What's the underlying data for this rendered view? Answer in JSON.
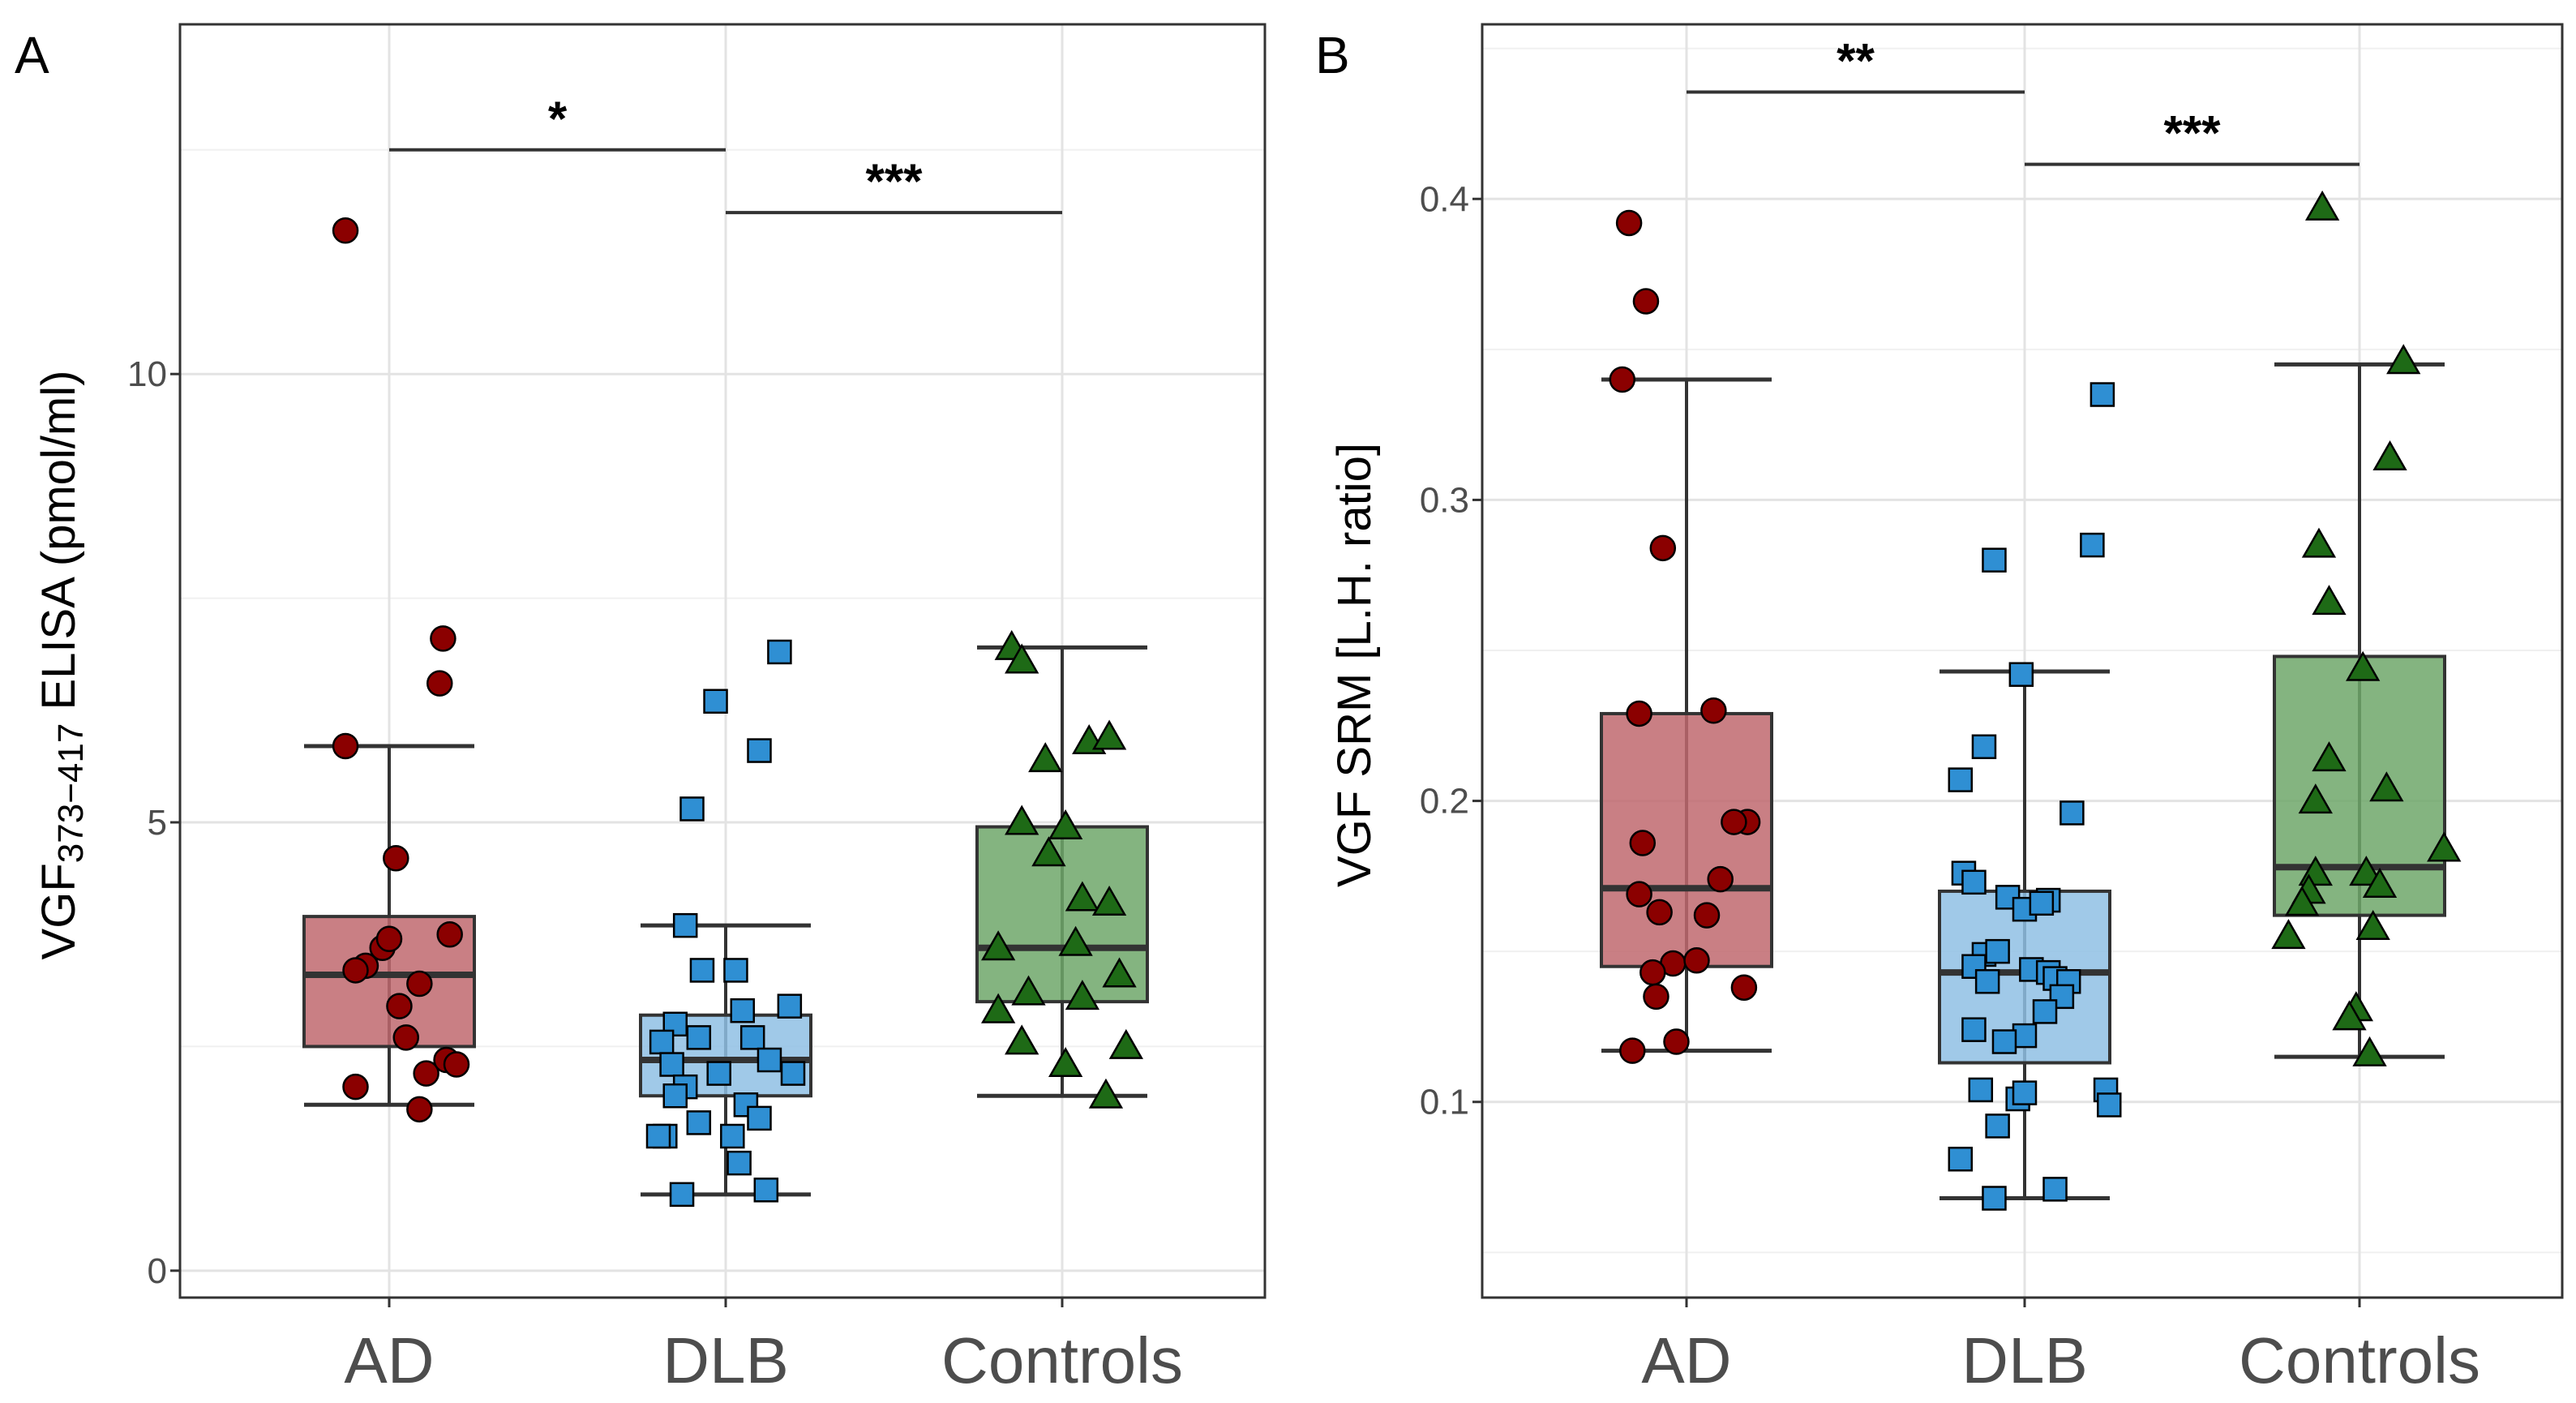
{
  "chart_data": [
    {
      "panel": "A",
      "type": "box",
      "ylabel_main": "VGF",
      "ylabel_sub": "373−417",
      "ylabel_rest": " ELISA (pmol/ml)",
      "categories": [
        "AD",
        "DLB",
        "Controls"
      ],
      "ylim": [
        -0.3,
        13.9
      ],
      "yticks": [
        0,
        5,
        10
      ],
      "ytick_labels": [
        "0",
        "5",
        "10"
      ],
      "colors": {
        "fill": [
          "#c0686e",
          "#8fbfe4",
          "#6ea76a"
        ],
        "point": [
          "#8b0000",
          "#2f8fd3",
          "#1e6a16"
        ]
      },
      "shapes": [
        "circle",
        "square",
        "triangle"
      ],
      "boxes": [
        {
          "category": "AD",
          "whisker_low": 1.85,
          "q1": 2.5,
          "median": 3.3,
          "q3": 3.95,
          "whisker_high": 5.85
        },
        {
          "category": "DLB",
          "whisker_low": 0.85,
          "q1": 1.95,
          "median": 2.35,
          "q3": 2.85,
          "whisker_high": 3.85
        },
        {
          "category": "Controls",
          "whisker_low": 1.95,
          "q1": 3.0,
          "median": 3.6,
          "q3": 4.95,
          "whisker_high": 6.95
        }
      ],
      "points": [
        [
          {
            "x": -0.13,
            "y": 11.6
          },
          {
            "x": 0.16,
            "y": 7.05
          },
          {
            "x": 0.15,
            "y": 6.55
          },
          {
            "x": -0.13,
            "y": 5.85
          },
          {
            "x": 0.02,
            "y": 4.6
          },
          {
            "x": -0.07,
            "y": 3.4
          },
          {
            "x": -0.1,
            "y": 3.35
          },
          {
            "x": -0.02,
            "y": 3.6
          },
          {
            "x": 0.0,
            "y": 3.7
          },
          {
            "x": 0.18,
            "y": 3.75
          },
          {
            "x": 0.09,
            "y": 3.2
          },
          {
            "x": 0.03,
            "y": 2.95
          },
          {
            "x": 0.05,
            "y": 2.6
          },
          {
            "x": -0.1,
            "y": 2.05
          },
          {
            "x": 0.11,
            "y": 2.2
          },
          {
            "x": 0.17,
            "y": 2.35
          },
          {
            "x": 0.2,
            "y": 2.3
          },
          {
            "x": 0.09,
            "y": 1.8
          }
        ],
        [
          {
            "x": 0.16,
            "y": 6.9
          },
          {
            "x": -0.03,
            "y": 6.35
          },
          {
            "x": 0.1,
            "y": 5.8
          },
          {
            "x": -0.1,
            "y": 5.15
          },
          {
            "x": -0.12,
            "y": 3.85
          },
          {
            "x": -0.07,
            "y": 3.35
          },
          {
            "x": 0.03,
            "y": 3.35
          },
          {
            "x": 0.19,
            "y": 2.95
          },
          {
            "x": 0.05,
            "y": 2.9
          },
          {
            "x": -0.15,
            "y": 2.75
          },
          {
            "x": -0.19,
            "y": 2.55
          },
          {
            "x": -0.08,
            "y": 2.6
          },
          {
            "x": 0.08,
            "y": 2.6
          },
          {
            "x": -0.16,
            "y": 2.3
          },
          {
            "x": -0.02,
            "y": 2.2
          },
          {
            "x": 0.13,
            "y": 2.35
          },
          {
            "x": 0.2,
            "y": 2.2
          },
          {
            "x": -0.12,
            "y": 2.05
          },
          {
            "x": -0.15,
            "y": 1.95
          },
          {
            "x": 0.06,
            "y": 1.85
          },
          {
            "x": -0.08,
            "y": 1.65
          },
          {
            "x": 0.1,
            "y": 1.7
          },
          {
            "x": -0.18,
            "y": 1.5
          },
          {
            "x": -0.2,
            "y": 1.5
          },
          {
            "x": 0.02,
            "y": 1.5
          },
          {
            "x": 0.04,
            "y": 1.2
          },
          {
            "x": 0.12,
            "y": 0.9
          },
          {
            "x": -0.13,
            "y": 0.85
          }
        ],
        [
          {
            "x": -0.15,
            "y": 6.95
          },
          {
            "x": -0.12,
            "y": 6.8
          },
          {
            "x": 0.08,
            "y": 5.9
          },
          {
            "x": 0.14,
            "y": 5.95
          },
          {
            "x": -0.05,
            "y": 5.7
          },
          {
            "x": -0.12,
            "y": 5.0
          },
          {
            "x": 0.01,
            "y": 4.95
          },
          {
            "x": -0.04,
            "y": 4.65
          },
          {
            "x": 0.06,
            "y": 4.15
          },
          {
            "x": 0.14,
            "y": 4.1
          },
          {
            "x": -0.19,
            "y": 3.6
          },
          {
            "x": 0.04,
            "y": 3.65
          },
          {
            "x": 0.17,
            "y": 3.3
          },
          {
            "x": -0.1,
            "y": 3.1
          },
          {
            "x": 0.06,
            "y": 3.05
          },
          {
            "x": -0.19,
            "y": 2.9
          },
          {
            "x": -0.12,
            "y": 2.55
          },
          {
            "x": 0.19,
            "y": 2.5
          },
          {
            "x": 0.01,
            "y": 2.3
          },
          {
            "x": 0.13,
            "y": 1.95
          }
        ]
      ],
      "significance": [
        {
          "from": 0,
          "to": 1,
          "y": 12.5,
          "label": "*"
        },
        {
          "from": 1,
          "to": 2,
          "y": 11.8,
          "label": "***"
        }
      ]
    },
    {
      "panel": "B",
      "type": "box",
      "ylabel_main": "VGF SRM [L.H. ratio]",
      "ylabel_sub": "",
      "ylabel_rest": "",
      "categories": [
        "AD",
        "DLB",
        "Controls"
      ],
      "ylim": [
        0.035,
        0.458
      ],
      "yticks": [
        0.1,
        0.2,
        0.3,
        0.4
      ],
      "ytick_labels": [
        "0.1",
        "0.2",
        "0.3",
        "0.4"
      ],
      "colors": {
        "fill": [
          "#c0686e",
          "#8fbfe4",
          "#6ea76a"
        ],
        "point": [
          "#8b0000",
          "#2f8fd3",
          "#1e6a16"
        ]
      },
      "shapes": [
        "circle",
        "square",
        "triangle"
      ],
      "boxes": [
        {
          "category": "AD",
          "whisker_low": 0.117,
          "q1": 0.145,
          "median": 0.171,
          "q3": 0.229,
          "whisker_high": 0.34
        },
        {
          "category": "DLB",
          "whisker_low": 0.068,
          "q1": 0.113,
          "median": 0.143,
          "q3": 0.17,
          "whisker_high": 0.243
        },
        {
          "category": "Controls",
          "whisker_low": 0.115,
          "q1": 0.162,
          "median": 0.178,
          "q3": 0.248,
          "whisker_high": 0.345
        }
      ],
      "points": [
        [
          {
            "x": -0.17,
            "y": 0.392
          },
          {
            "x": -0.12,
            "y": 0.366
          },
          {
            "x": -0.19,
            "y": 0.34
          },
          {
            "x": -0.07,
            "y": 0.284
          },
          {
            "x": -0.14,
            "y": 0.229
          },
          {
            "x": 0.08,
            "y": 0.23
          },
          {
            "x": -0.13,
            "y": 0.186
          },
          {
            "x": 0.18,
            "y": 0.193
          },
          {
            "x": 0.14,
            "y": 0.193
          },
          {
            "x": 0.1,
            "y": 0.174
          },
          {
            "x": -0.14,
            "y": 0.169
          },
          {
            "x": 0.06,
            "y": 0.162
          },
          {
            "x": -0.08,
            "y": 0.163
          },
          {
            "x": -0.04,
            "y": 0.146
          },
          {
            "x": 0.03,
            "y": 0.147
          },
          {
            "x": -0.1,
            "y": 0.143
          },
          {
            "x": -0.09,
            "y": 0.135
          },
          {
            "x": 0.17,
            "y": 0.138
          },
          {
            "x": -0.03,
            "y": 0.12
          },
          {
            "x": -0.16,
            "y": 0.117
          }
        ],
        [
          {
            "x": 0.23,
            "y": 0.335
          },
          {
            "x": 0.2,
            "y": 0.285
          },
          {
            "x": -0.09,
            "y": 0.28
          },
          {
            "x": -0.01,
            "y": 0.242
          },
          {
            "x": -0.12,
            "y": 0.218
          },
          {
            "x": -0.19,
            "y": 0.207
          },
          {
            "x": 0.14,
            "y": 0.196
          },
          {
            "x": -0.18,
            "y": 0.176
          },
          {
            "x": -0.15,
            "y": 0.173
          },
          {
            "x": -0.05,
            "y": 0.168
          },
          {
            "x": 0.07,
            "y": 0.167
          },
          {
            "x": 0.0,
            "y": 0.164
          },
          {
            "x": 0.05,
            "y": 0.166
          },
          {
            "x": -0.12,
            "y": 0.149
          },
          {
            "x": -0.08,
            "y": 0.15
          },
          {
            "x": -0.15,
            "y": 0.145
          },
          {
            "x": 0.02,
            "y": 0.144
          },
          {
            "x": 0.07,
            "y": 0.143
          },
          {
            "x": 0.09,
            "y": 0.141
          },
          {
            "x": 0.13,
            "y": 0.14
          },
          {
            "x": 0.11,
            "y": 0.135
          },
          {
            "x": -0.11,
            "y": 0.14
          },
          {
            "x": 0.06,
            "y": 0.13
          },
          {
            "x": -0.15,
            "y": 0.124
          },
          {
            "x": 0.0,
            "y": 0.122
          },
          {
            "x": -0.06,
            "y": 0.12
          },
          {
            "x": -0.13,
            "y": 0.104
          },
          {
            "x": -0.02,
            "y": 0.101
          },
          {
            "x": 0.0,
            "y": 0.103
          },
          {
            "x": 0.24,
            "y": 0.104
          },
          {
            "x": 0.25,
            "y": 0.099
          },
          {
            "x": -0.08,
            "y": 0.092
          },
          {
            "x": -0.19,
            "y": 0.081
          },
          {
            "x": 0.09,
            "y": 0.071
          },
          {
            "x": -0.09,
            "y": 0.068
          }
        ],
        [
          {
            "x": -0.11,
            "y": 0.397
          },
          {
            "x": 0.13,
            "y": 0.346
          },
          {
            "x": 0.09,
            "y": 0.314
          },
          {
            "x": -0.12,
            "y": 0.285
          },
          {
            "x": -0.09,
            "y": 0.266
          },
          {
            "x": 0.01,
            "y": 0.244
          },
          {
            "x": -0.09,
            "y": 0.214
          },
          {
            "x": 0.08,
            "y": 0.204
          },
          {
            "x": -0.13,
            "y": 0.2
          },
          {
            "x": 0.25,
            "y": 0.184
          },
          {
            "x": 0.02,
            "y": 0.176
          },
          {
            "x": -0.13,
            "y": 0.176
          },
          {
            "x": -0.15,
            "y": 0.17
          },
          {
            "x": 0.06,
            "y": 0.172
          },
          {
            "x": -0.17,
            "y": 0.166
          },
          {
            "x": 0.04,
            "y": 0.158
          },
          {
            "x": -0.21,
            "y": 0.155
          },
          {
            "x": -0.01,
            "y": 0.131
          },
          {
            "x": -0.03,
            "y": 0.128
          },
          {
            "x": 0.03,
            "y": 0.116
          }
        ]
      ],
      "significance": [
        {
          "from": 0,
          "to": 1,
          "y": 0.4355,
          "label": "**"
        },
        {
          "from": 1,
          "to": 2,
          "y": 0.4115,
          "label": "***"
        }
      ]
    }
  ]
}
